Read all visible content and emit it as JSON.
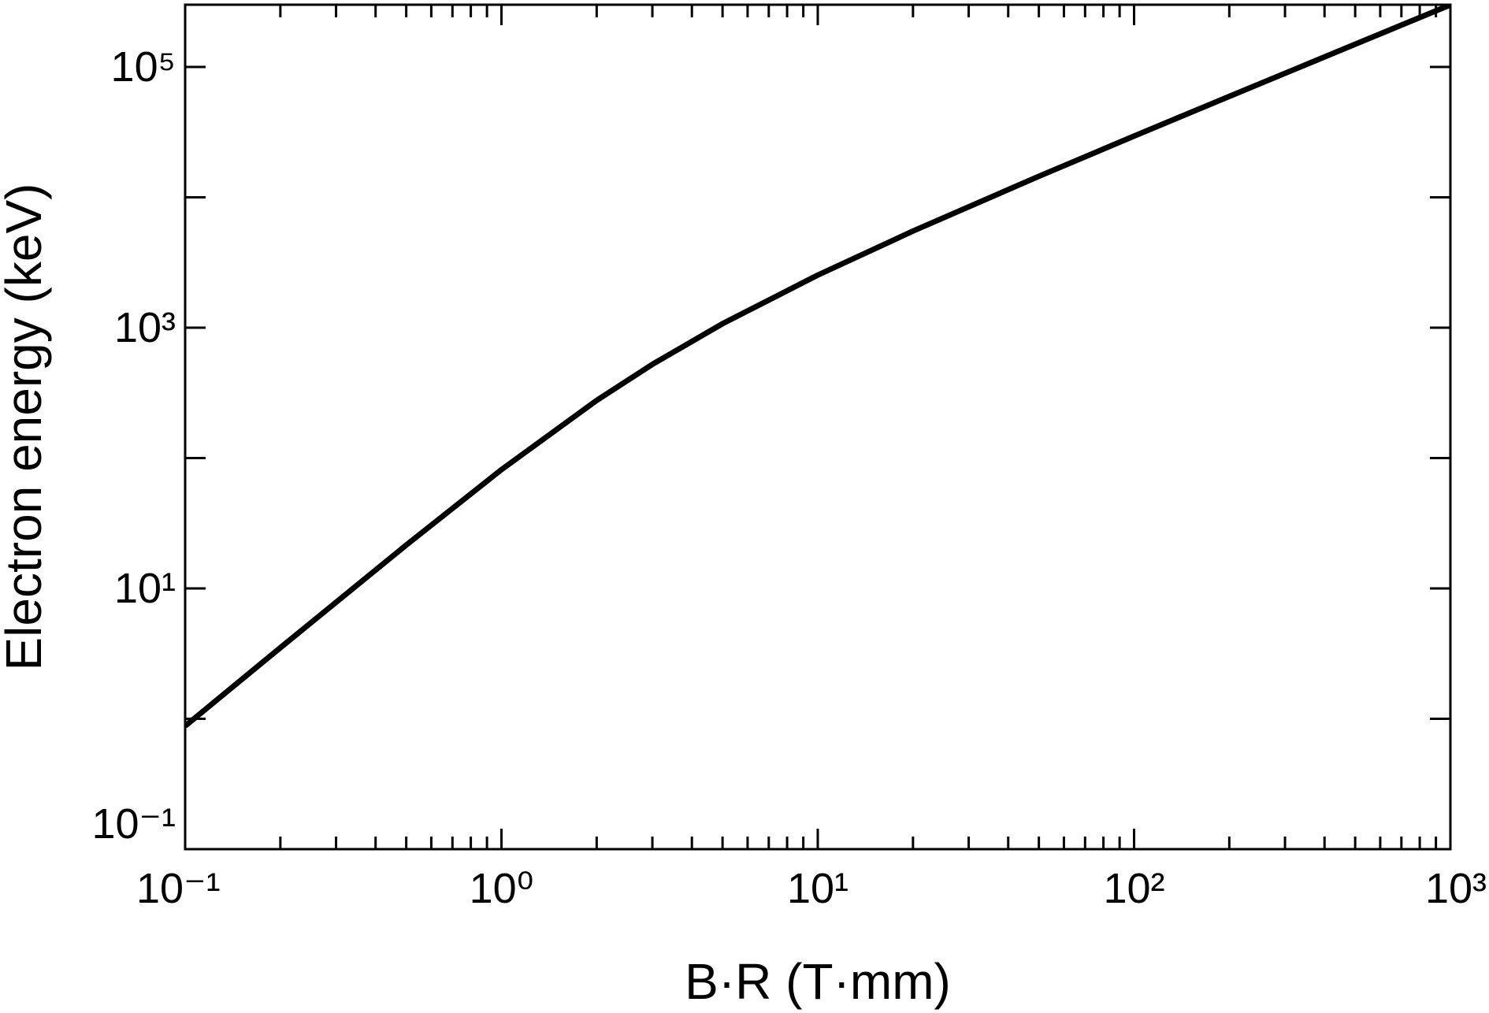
{
  "chart_data": {
    "type": "line",
    "xlabel": "B·R (T·mm)",
    "ylabel": "Electron energy (keV)",
    "xscale": "log",
    "yscale": "log",
    "xlim": [
      0.1,
      1000
    ],
    "ylim": [
      0.1,
      300000
    ],
    "xticks": [
      {
        "value": 0.1,
        "label": "10⁻¹"
      },
      {
        "value": 1,
        "label": "10⁰"
      },
      {
        "value": 10,
        "label": "10¹"
      },
      {
        "value": 100,
        "label": "10²"
      },
      {
        "value": 1000,
        "label": "10³"
      }
    ],
    "xminorticks": [
      0.2,
      0.3,
      0.4,
      0.5,
      0.6,
      0.7,
      0.8,
      0.9,
      2,
      3,
      4,
      5,
      6,
      7,
      8,
      9,
      20,
      30,
      40,
      50,
      60,
      70,
      80,
      90,
      200,
      300,
      400,
      500,
      600,
      700,
      800,
      900
    ],
    "yticks": [
      {
        "value": 0.1,
        "label": "10⁻¹"
      },
      {
        "value": 10,
        "label": "10¹"
      },
      {
        "value": 1000,
        "label": "10³"
      },
      {
        "value": 100000,
        "label": "10⁵"
      }
    ],
    "yunlabeledticks": [
      1,
      100,
      10000
    ],
    "grid": false,
    "series": [
      {
        "color": "#000000",
        "x": [
          0.1,
          0.2,
          0.5,
          1,
          2,
          3,
          5,
          10,
          20,
          50,
          100,
          200,
          500,
          1000
        ],
        "values": [
          0.88,
          3.51,
          21.5,
          81.5,
          276.8,
          523.4,
          1072.7,
          2530,
          5507,
          14488,
          29473,
          59449,
          149385,
          299280
        ]
      }
    ]
  }
}
